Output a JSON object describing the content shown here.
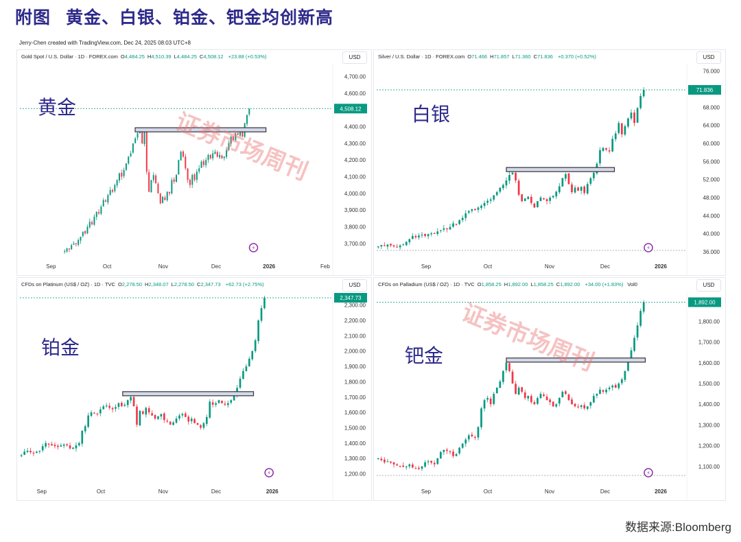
{
  "page": {
    "title_prefix": "附图",
    "title_main": "黄金、白银、铂金、钯金均创新高",
    "credit": "Jerry-Chen created with TradingView.com, Dec 24, 2025 08:03 UTC+8",
    "source": "数据来源:Bloomberg",
    "watermark": "证券市场周刊",
    "currency_label": "USD"
  },
  "colors": {
    "up": "#089981",
    "down": "#f23645",
    "title": "#2e2a8a",
    "resistance_fill": "#d4d8ea",
    "resistance_stroke": "#333333",
    "event_icon": "#8e2fa8"
  },
  "chart_data": [
    {
      "type": "candlestick",
      "label": "黄金",
      "title": "Gold Spot / U.S. Dollar · 1D · FOREX.com",
      "ohlc": {
        "O": "4,484.25",
        "H": "4,510.39",
        "L": "4,484.25",
        "C": "4,508.12",
        "chg": "+23.88 (+0.53%)"
      },
      "last_price": "4,508.12",
      "last_value": 4508.12,
      "ylim": [
        3650,
        4760
      ],
      "y_ticks": [
        "4,700.00",
        "4,600.00",
        "4,400.00",
        "4,300.00",
        "4,200.00",
        "4,100.00",
        "4,000.00",
        "3,900.00",
        "3,800.00",
        "3,700.00"
      ],
      "y_tick_values": [
        4700,
        4600,
        4400,
        4300,
        4200,
        4100,
        4000,
        3900,
        3800,
        3700
      ],
      "x_ticks": [
        "Sep",
        "Oct",
        "Nov",
        "Dec",
        "2026",
        "Feb"
      ],
      "x_tick_pos": [
        0.1,
        0.28,
        0.46,
        0.63,
        0.8,
        0.98
      ],
      "resistance": {
        "value": 4381,
        "x_start": 0.37,
        "x_end": 0.79
      },
      "bottom_dashed": false,
      "series_closes": [
        3655,
        3670,
        3665,
        3690,
        3700,
        3695,
        3720,
        3740,
        3770,
        3760,
        3800,
        3830,
        3815,
        3860,
        3890,
        3880,
        3920,
        3960,
        3950,
        3990,
        4020,
        4010,
        4050,
        4080,
        4120,
        4100,
        4140,
        4180,
        4220,
        4240,
        4300,
        4330,
        4360,
        4370,
        4300,
        4370,
        4130,
        4010,
        4080,
        4110,
        4060,
        4000,
        3940,
        3980,
        3960,
        4010,
        4000,
        4080,
        4070,
        4110,
        4200,
        4250,
        4220,
        4150,
        4080,
        4050,
        4110,
        4080,
        4130,
        4150,
        4190,
        4170,
        4200,
        4230,
        4210,
        4240,
        4250,
        4220,
        4230,
        4210,
        4220,
        4260,
        4300,
        4340,
        4320,
        4360,
        4350,
        4370,
        4340,
        4420,
        4470,
        4508
      ]
    },
    {
      "type": "candlestick",
      "label": "白银",
      "title": "Silver / U.S. Dollar · 1D · FOREX.com",
      "ohlc": {
        "O": "71.466",
        "H": "71.857",
        "L": "71.360",
        "C": "71.836",
        "chg": "+0.370 (+0.52%)"
      },
      "last_price": "71.836",
      "last_value": 71.836,
      "ylim": [
        36,
        77
      ],
      "y_ticks": [
        "76.000",
        "68.000",
        "64.000",
        "60.000",
        "56.000",
        "52.000",
        "48.000",
        "44.000",
        "40.000",
        "36.000"
      ],
      "y_tick_values": [
        76,
        68,
        64,
        60,
        56,
        52,
        48,
        44,
        40,
        36
      ],
      "x_ticks": [
        "Sep",
        "Oct",
        "Nov",
        "Dec",
        "2026"
      ],
      "x_tick_pos": [
        0.16,
        0.36,
        0.56,
        0.74,
        0.92
      ],
      "resistance": {
        "value": 54.2,
        "x_start": 0.42,
        "x_end": 0.77
      },
      "bottom_dashed": true,
      "series_closes": [
        37.2,
        37.5,
        37.3,
        37.6,
        37.4,
        37.2,
        37.0,
        37.4,
        37.6,
        38.2,
        38.8,
        39.5,
        39.2,
        39.6,
        39.8,
        39.5,
        39.9,
        40.1,
        40.0,
        40.5,
        40.8,
        41.2,
        41.0,
        41.5,
        42.3,
        42.0,
        43.0,
        43.5,
        44.5,
        45.0,
        45.4,
        45.2,
        45.8,
        46.2,
        46.8,
        47.3,
        47.6,
        48.5,
        49.2,
        50.2,
        50.8,
        51.8,
        53.0,
        53.5,
        51.8,
        48.6,
        47.2,
        47.8,
        48.2,
        46.8,
        45.8,
        47.2,
        48.0,
        47.6,
        47.2,
        48.0,
        48.4,
        49.3,
        50.5,
        52.3,
        53.2,
        51.0,
        49.2,
        50.2,
        49.5,
        50.4,
        49.0,
        51.0,
        52.3,
        53.5,
        55.5,
        58.5,
        59.0,
        58.6,
        58.2,
        61.0,
        62.2,
        64.5,
        62.0,
        63.8,
        65.5,
        66.8,
        64.5,
        67.8,
        70.5,
        71.836
      ]
    },
    {
      "type": "candlestick",
      "label": "铂金",
      "title": "CFDs on Platinum (US$ / OZ) · 1D · TVC",
      "ohlc": {
        "O": "2,278.50",
        "H": "2,348.07",
        "L": "2,278.50",
        "C": "2,347.73",
        "chg": "+62.73 (+2.75%)"
      },
      "last_price": "2,347.73",
      "last_value": 2347.73,
      "ylim": [
        1180,
        2370
      ],
      "y_ticks": [
        "2,300.00",
        "2,200.00",
        "2,100.00",
        "2,000.00",
        "1,900.00",
        "1,800.00",
        "1,700.00",
        "1,600.00",
        "1,500.00",
        "1,400.00",
        "1,300.00",
        "1,200.00"
      ],
      "y_tick_values": [
        2300,
        2200,
        2100,
        2000,
        1900,
        1800,
        1700,
        1600,
        1500,
        1400,
        1300,
        1200
      ],
      "x_ticks": [
        "Sep",
        "Oct",
        "Nov",
        "Dec",
        "2026"
      ],
      "x_tick_pos": [
        0.07,
        0.26,
        0.46,
        0.63,
        0.81
      ],
      "resistance": {
        "value": 1722,
        "x_start": 0.33,
        "x_end": 0.75
      },
      "bottom_dashed": false,
      "series_closes": [
        1320,
        1345,
        1350,
        1340,
        1335,
        1345,
        1350,
        1380,
        1400,
        1390,
        1385,
        1380,
        1375,
        1385,
        1390,
        1385,
        1365,
        1370,
        1385,
        1400,
        1480,
        1510,
        1580,
        1600,
        1595,
        1590,
        1620,
        1640,
        1645,
        1630,
        1620,
        1635,
        1660,
        1640,
        1650,
        1680,
        1700,
        1640,
        1520,
        1610,
        1590,
        1630,
        1600,
        1580,
        1560,
        1575,
        1590,
        1550,
        1540,
        1520,
        1535,
        1560,
        1580,
        1590,
        1570,
        1540,
        1560,
        1530,
        1520,
        1500,
        1530,
        1570,
        1670,
        1650,
        1660,
        1680,
        1660,
        1650,
        1660,
        1680,
        1720,
        1760,
        1820,
        1870,
        1900,
        1950,
        2000,
        2070,
        2200,
        2280,
        2347.73
      ]
    },
    {
      "type": "candlestick",
      "label": "钯金",
      "title": "CFDs on Palladium (US$ / OZ) · 1D · TVC",
      "ohlc": {
        "O": "1,858.25",
        "H": "1,892.00",
        "L": "1,858.25",
        "C": "1,892.00",
        "chg": "+34.00 (+1.83%)",
        "vol": "Vol0"
      },
      "last_price": "1,892.00",
      "last_value": 1892.0,
      "ylim": [
        1050,
        1930
      ],
      "y_ticks": [
        "1,800.00",
        "1,700.00",
        "1,600.00",
        "1,500.00",
        "1,400.00",
        "1,300.00",
        "1,200.00",
        "1,100.00"
      ],
      "y_tick_values": [
        1800,
        1700,
        1600,
        1500,
        1400,
        1300,
        1200,
        1100
      ],
      "x_ticks": [
        "Sep",
        "Oct",
        "Nov",
        "Dec",
        "2026"
      ],
      "x_tick_pos": [
        0.16,
        0.36,
        0.56,
        0.74,
        0.92
      ],
      "resistance": {
        "value": 1613,
        "x_start": 0.42,
        "x_end": 0.87
      },
      "bottom_dashed": true,
      "series_closes": [
        1140,
        1130,
        1120,
        1125,
        1118,
        1110,
        1105,
        1102,
        1098,
        1100,
        1110,
        1095,
        1090,
        1088,
        1100,
        1120,
        1125,
        1118,
        1110,
        1140,
        1170,
        1180,
        1175,
        1170,
        1150,
        1160,
        1190,
        1210,
        1230,
        1250,
        1245,
        1240,
        1290,
        1380,
        1420,
        1430,
        1400,
        1450,
        1480,
        1510,
        1560,
        1600,
        1560,
        1500,
        1450,
        1480,
        1460,
        1430,
        1440,
        1410,
        1400,
        1430,
        1450,
        1440,
        1420,
        1410,
        1390,
        1400,
        1430,
        1460,
        1450,
        1420,
        1400,
        1390,
        1385,
        1395,
        1380,
        1390,
        1410,
        1440,
        1450,
        1470,
        1460,
        1470,
        1480,
        1490,
        1480,
        1500,
        1520,
        1560,
        1610,
        1660,
        1720,
        1780,
        1850,
        1892
      ]
    }
  ]
}
